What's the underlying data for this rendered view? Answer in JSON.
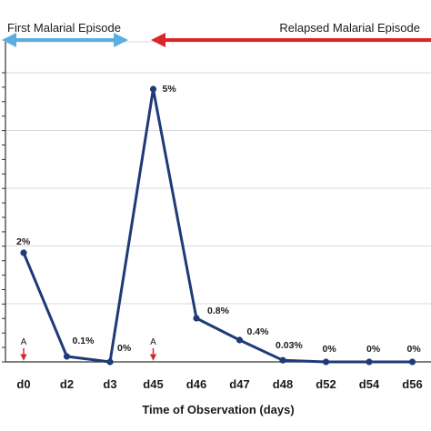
{
  "chart_data": {
    "type": "line",
    "categories": [
      "d0",
      "d2",
      "d3",
      "d45",
      "d46",
      "d47",
      "d48",
      "d52",
      "d54",
      "d56"
    ],
    "series": [
      {
        "values": [
          2,
          0.1,
          0,
          5,
          0.8,
          0.4,
          0.03,
          0,
          0,
          0
        ],
        "data_labels": [
          "2%",
          "0.1%",
          "0%",
          "5%",
          "0.8%",
          "0.4%",
          "0.03%",
          "0%",
          "0%",
          "0%"
        ],
        "color": "#1f3a78"
      }
    ],
    "ylim": [
      0,
      5.3
    ],
    "xlabel": "Time of Observation (days)",
    "ylabel": "",
    "grid": true,
    "annotations": {
      "first_episode": {
        "label": "First Malarial Episode",
        "color": "#5aaee0",
        "from": "d0",
        "to": "d3"
      },
      "relapsed_episode": {
        "label": "Relapsed Malarial Episode",
        "color": "#d9262b",
        "from": "d3",
        "to": "end"
      },
      "treatment_markers": [
        {
          "at": "d0",
          "label": "A",
          "color": "#d9262b"
        },
        {
          "at": "d45",
          "label": "A",
          "color": "#d9262b"
        }
      ]
    }
  }
}
